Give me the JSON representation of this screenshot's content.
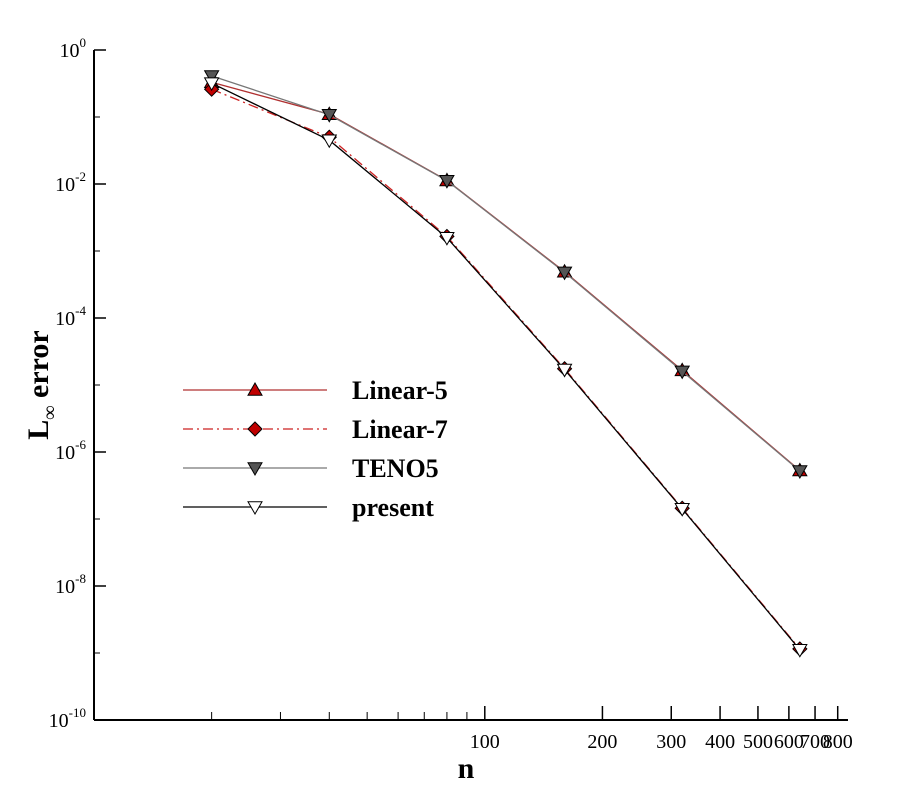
{
  "chart_data": {
    "type": "line",
    "xlabel": "n",
    "ylabel_main": "L",
    "ylabel_sub": "∞",
    "ylabel_rest": " error",
    "xscale": "log",
    "yscale": "log",
    "xlim": [
      10,
      850
    ],
    "ylim": [
      1e-10,
      1
    ],
    "x_major_ticks": [
      {
        "value": 100,
        "label": "100"
      },
      {
        "value": 200,
        "label": "200"
      },
      {
        "value": 300,
        "label": "300"
      },
      {
        "value": 400,
        "label": "400"
      },
      {
        "value": 500,
        "label": "500"
      },
      {
        "value": 600,
        "label": "600"
      },
      {
        "value": 700,
        "label": "700"
      },
      {
        "value": 800,
        "label": "800"
      }
    ],
    "x_minor_ticks": [
      20,
      30,
      40,
      50,
      60,
      70,
      80,
      90
    ],
    "y_ticks": [
      {
        "value": 1,
        "base": "10",
        "exp": "0"
      },
      {
        "value": 0.01,
        "base": "10",
        "exp": "-2"
      },
      {
        "value": 0.0001,
        "base": "10",
        "exp": "-4"
      },
      {
        "value": 1e-06,
        "base": "10",
        "exp": "-6"
      },
      {
        "value": 1e-08,
        "base": "10",
        "exp": "-8"
      },
      {
        "value": 1e-10,
        "base": "10",
        "exp": "-10"
      }
    ],
    "legend_position": "center-left",
    "x": [
      20,
      40,
      80,
      160,
      320,
      640
    ],
    "series": [
      {
        "name": "Linear-5",
        "marker": "triangle-up",
        "line_color": "#b03030",
        "marker_fill": "#c00000",
        "dash": "solid",
        "values": [
          0.33,
          0.11,
          0.0113,
          0.00049,
          1.65e-05,
          5.3e-07
        ]
      },
      {
        "name": "Linear-7",
        "marker": "diamond",
        "line_color": "#cc2222",
        "marker_fill": "#c00000",
        "dash": "dashdot",
        "values": [
          0.26,
          0.05,
          0.00165,
          1.75e-05,
          1.45e-07,
          1.15e-09
        ]
      },
      {
        "name": "TENO5",
        "marker": "triangle-down",
        "line_color": "#777777",
        "marker_fill": "#555555",
        "dash": "solid",
        "values": [
          0.41,
          0.108,
          0.0112,
          0.00048,
          1.6e-05,
          5.2e-07
        ]
      },
      {
        "name": "present",
        "marker": "triangle-down",
        "line_color": "#000000",
        "marker_fill": "#ffffff",
        "dash": "solid",
        "values": [
          0.32,
          0.045,
          0.00158,
          1.7e-05,
          1.42e-07,
          1.12e-09
        ]
      }
    ]
  }
}
